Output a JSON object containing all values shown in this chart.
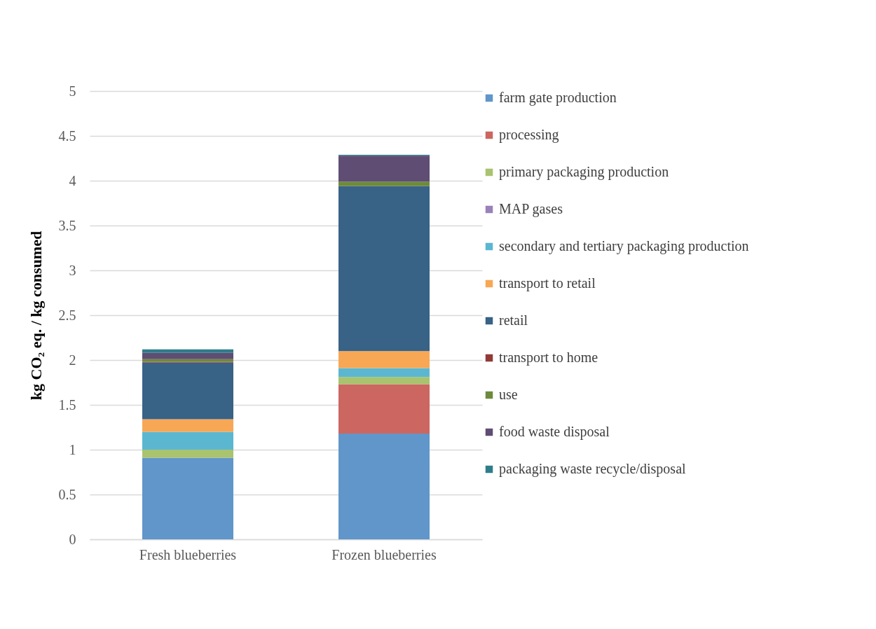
{
  "chart_data": {
    "type": "bar",
    "stacked": true,
    "ylabel": "kg CO₂ eq. / kg consumed",
    "categories": [
      "Fresh blueberries",
      "Frozen blueberries"
    ],
    "series": [
      {
        "name": "farm gate production",
        "color": "#6096c9",
        "values": [
          0.91,
          1.18
        ]
      },
      {
        "name": "processing",
        "color": "#cc6660",
        "values": [
          0,
          0.55
        ]
      },
      {
        "name": "primary packaging production",
        "color": "#a9c36e",
        "values": [
          0.09,
          0.08
        ]
      },
      {
        "name": "MAP gases",
        "color": "#9882b7",
        "values": [
          0,
          0
        ]
      },
      {
        "name": "secondary and tertiary packaging production",
        "color": "#5bb7d0",
        "values": [
          0.2,
          0.1
        ]
      },
      {
        "name": "transport to retail",
        "color": "#f8a755",
        "values": [
          0.14,
          0.19
        ]
      },
      {
        "name": "retail",
        "color": "#386286",
        "values": [
          0.63,
          1.84
        ]
      },
      {
        "name": "transport to home",
        "color": "#913a36",
        "values": [
          0.01,
          0
        ]
      },
      {
        "name": "use",
        "color": "#6e8a3d",
        "values": [
          0.03,
          0.05
        ]
      },
      {
        "name": "food waste disposal",
        "color": "#5f4d73",
        "values": [
          0.07,
          0.29
        ]
      },
      {
        "name": "packaging waste recycle/disposal",
        "color": "#2e7d8a",
        "values": [
          0.04,
          0.01
        ]
      }
    ],
    "ylim": [
      0,
      5
    ],
    "yticks": [
      0,
      0.5,
      1,
      1.5,
      2,
      2.5,
      3,
      3.5,
      4,
      4.5,
      5
    ],
    "grid": "y",
    "legend": "right"
  }
}
